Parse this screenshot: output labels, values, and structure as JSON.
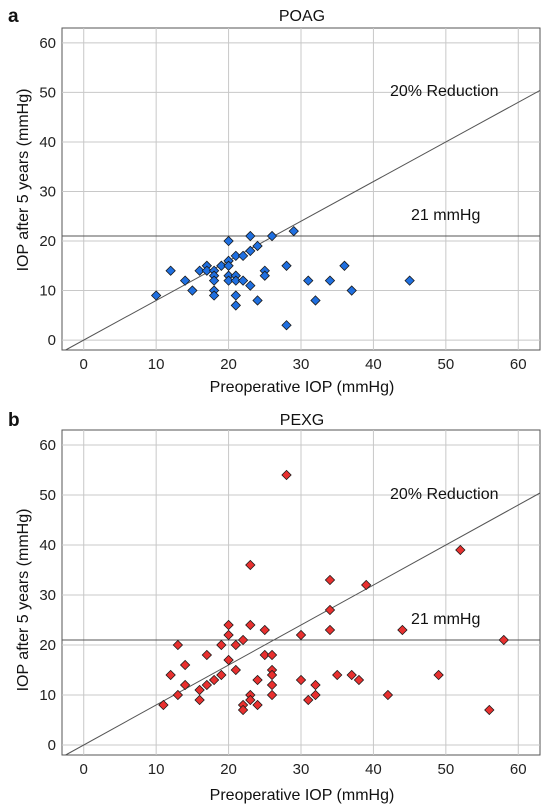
{
  "chart_data": [
    {
      "type": "scatter",
      "panel_label": "a",
      "title": "POAG",
      "xlabel": "Preoperative IOP (mmHg)",
      "ylabel": "IOP after 5 years (mmHg)",
      "xlim": [
        -3,
        63
      ],
      "ylim": [
        -2,
        63
      ],
      "x_ticks": [
        0,
        10,
        20,
        30,
        40,
        50,
        60
      ],
      "y_ticks": [
        0,
        10,
        20,
        30,
        40,
        50,
        60
      ],
      "grid": true,
      "marker": "diamond",
      "color": "#1f6fe0",
      "ref_line_label": "21 mmHg",
      "ref_line_y": 21,
      "reduction_line_label": "20% Reduction",
      "reduction_factor": 0.8,
      "points": [
        [
          10,
          9
        ],
        [
          12,
          14
        ],
        [
          14,
          12
        ],
        [
          15,
          10
        ],
        [
          16,
          14
        ],
        [
          17,
          15
        ],
        [
          17,
          14
        ],
        [
          18,
          14
        ],
        [
          18,
          13
        ],
        [
          18,
          12
        ],
        [
          18,
          10
        ],
        [
          18,
          9
        ],
        [
          19,
          15
        ],
        [
          20,
          20
        ],
        [
          20,
          16
        ],
        [
          20,
          15
        ],
        [
          20,
          13
        ],
        [
          20,
          12
        ],
        [
          21,
          17
        ],
        [
          21,
          13
        ],
        [
          21,
          12
        ],
        [
          21,
          9
        ],
        [
          21,
          7
        ],
        [
          22,
          17
        ],
        [
          22,
          12
        ],
        [
          23,
          21
        ],
        [
          23,
          18
        ],
        [
          23,
          11
        ],
        [
          24,
          19
        ],
        [
          24,
          8
        ],
        [
          25,
          14
        ],
        [
          25,
          13
        ],
        [
          26,
          21
        ],
        [
          28,
          15
        ],
        [
          28,
          3
        ],
        [
          29,
          22
        ],
        [
          31,
          12
        ],
        [
          32,
          8
        ],
        [
          34,
          12
        ],
        [
          36,
          15
        ],
        [
          37,
          10
        ],
        [
          45,
          12
        ]
      ]
    },
    {
      "type": "scatter",
      "panel_label": "b",
      "title": "PEXG",
      "xlabel": "Preoperative IOP (mmHg)",
      "ylabel": "IOP after 5 years (mmHg)",
      "xlim": [
        -3,
        63
      ],
      "ylim": [
        -2,
        63
      ],
      "x_ticks": [
        0,
        10,
        20,
        30,
        40,
        50,
        60
      ],
      "y_ticks": [
        0,
        10,
        20,
        30,
        40,
        50,
        60
      ],
      "grid": true,
      "marker": "diamond",
      "color": "#e8302f",
      "ref_line_label": "21 mmHg",
      "ref_line_y": 21,
      "reduction_line_label": "20% Reduction",
      "reduction_factor": 0.8,
      "points": [
        [
          11,
          8
        ],
        [
          12,
          14
        ],
        [
          13,
          20
        ],
        [
          13,
          10
        ],
        [
          14,
          16
        ],
        [
          14,
          12
        ],
        [
          16,
          11
        ],
        [
          16,
          9
        ],
        [
          17,
          18
        ],
        [
          17,
          12
        ],
        [
          18,
          13
        ],
        [
          19,
          20
        ],
        [
          19,
          14
        ],
        [
          20,
          24
        ],
        [
          20,
          22
        ],
        [
          20,
          17
        ],
        [
          21,
          20
        ],
        [
          21,
          15
        ],
        [
          22,
          21
        ],
        [
          22,
          8
        ],
        [
          22,
          7
        ],
        [
          23,
          36
        ],
        [
          23,
          24
        ],
        [
          23,
          10
        ],
        [
          23,
          9
        ],
        [
          24,
          13
        ],
        [
          24,
          8
        ],
        [
          25,
          23
        ],
        [
          25,
          18
        ],
        [
          26,
          18
        ],
        [
          26,
          15
        ],
        [
          26,
          14
        ],
        [
          26,
          12
        ],
        [
          26,
          10
        ],
        [
          28,
          54
        ],
        [
          30,
          22
        ],
        [
          30,
          13
        ],
        [
          31,
          9
        ],
        [
          32,
          12
        ],
        [
          32,
          10
        ],
        [
          34,
          33
        ],
        [
          34,
          27
        ],
        [
          34,
          23
        ],
        [
          35,
          14
        ],
        [
          37,
          14
        ],
        [
          38,
          13
        ],
        [
          39,
          32
        ],
        [
          42,
          10
        ],
        [
          44,
          23
        ],
        [
          49,
          14
        ],
        [
          52,
          39
        ],
        [
          56,
          7
        ],
        [
          58,
          21
        ]
      ]
    }
  ]
}
